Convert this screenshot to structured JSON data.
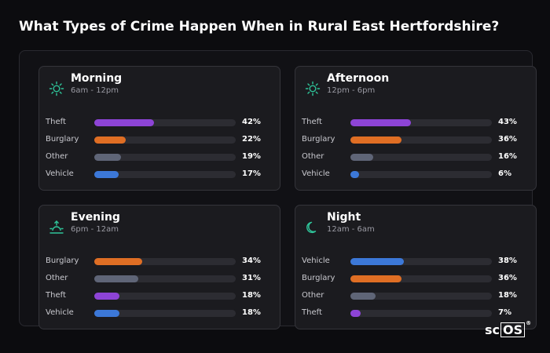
{
  "title": "What Types of Crime Happen When in Rural East Hertfordshire?",
  "logo": {
    "text_plain": "sc",
    "text_boxed": "OS",
    "mark": "®"
  },
  "colors": {
    "theft": "#8d44d6",
    "burglary": "#df6e24",
    "other": "#5f6577",
    "vehicle": "#3c78d8",
    "icon": "#2fc59a"
  },
  "chart_data": [
    {
      "type": "bar",
      "title": "Morning",
      "subtitle": "6am - 12pm",
      "icon": "sun-icon",
      "categories": [
        "Theft",
        "Burglary",
        "Other",
        "Vehicle"
      ],
      "values": [
        42,
        22,
        19,
        17
      ],
      "value_labels": [
        "42%",
        "22%",
        "19%",
        "17%"
      ],
      "xlim": [
        0,
        100
      ]
    },
    {
      "type": "bar",
      "title": "Afternoon",
      "subtitle": "12pm - 6pm",
      "icon": "sun-icon",
      "categories": [
        "Theft",
        "Burglary",
        "Other",
        "Vehicle"
      ],
      "values": [
        43,
        36,
        16,
        6
      ],
      "value_labels": [
        "43%",
        "36%",
        "16%",
        "6%"
      ],
      "xlim": [
        0,
        100
      ]
    },
    {
      "type": "bar",
      "title": "Evening",
      "subtitle": "6pm - 12am",
      "icon": "sunset-icon",
      "categories": [
        "Burglary",
        "Other",
        "Theft",
        "Vehicle"
      ],
      "values": [
        34,
        31,
        18,
        18
      ],
      "value_labels": [
        "34%",
        "31%",
        "18%",
        "18%"
      ],
      "xlim": [
        0,
        100
      ]
    },
    {
      "type": "bar",
      "title": "Night",
      "subtitle": "12am - 6am",
      "icon": "moon-icon",
      "categories": [
        "Vehicle",
        "Burglary",
        "Other",
        "Theft"
      ],
      "values": [
        38,
        36,
        18,
        7
      ],
      "value_labels": [
        "38%",
        "36%",
        "18%",
        "7%"
      ],
      "xlim": [
        0,
        100
      ]
    }
  ]
}
